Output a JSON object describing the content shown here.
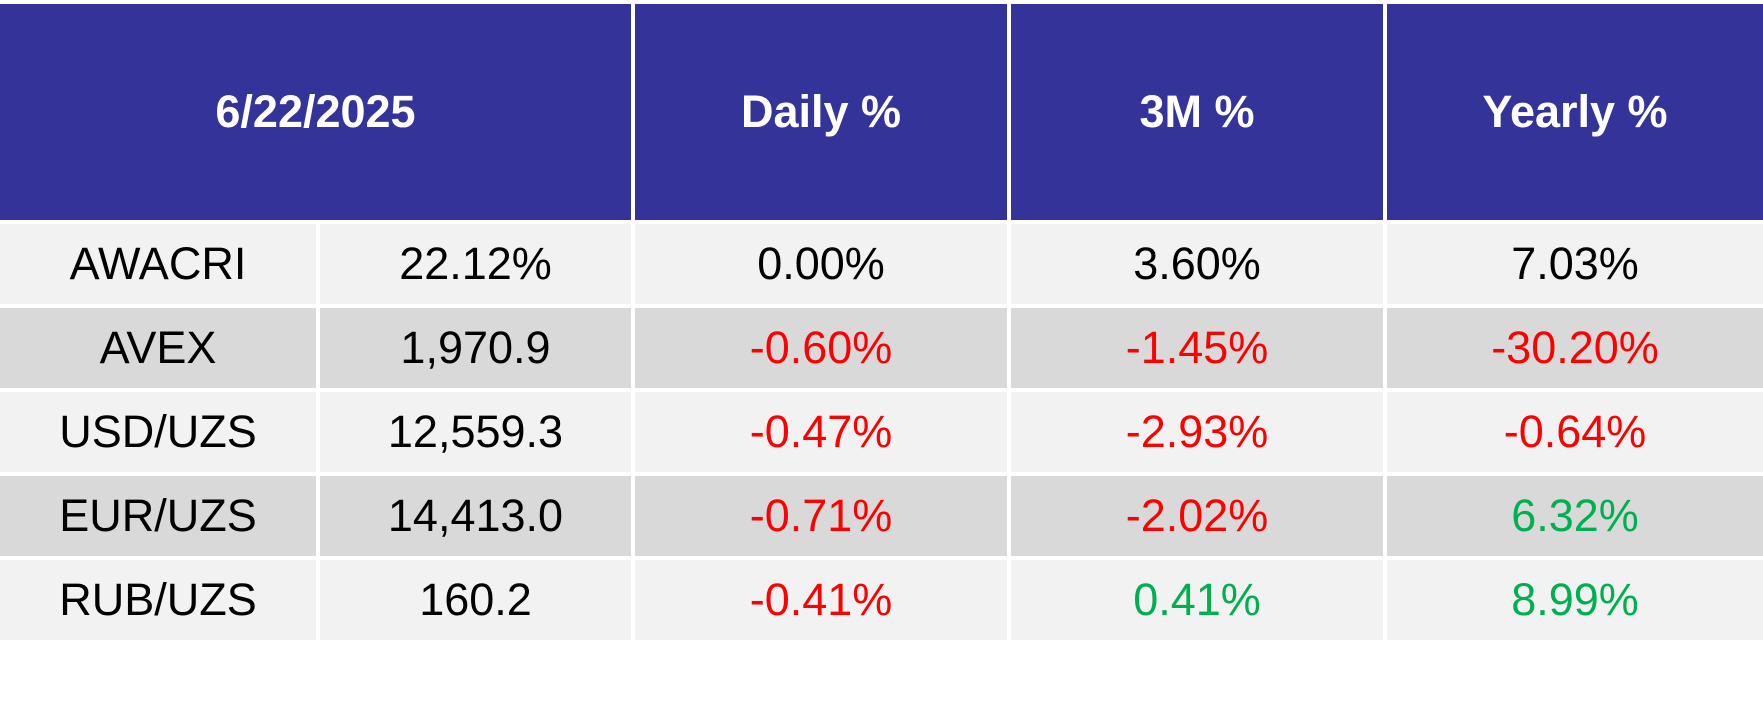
{
  "header": {
    "date": "6/22/2025",
    "daily": "Daily %",
    "three_month": "3M %",
    "yearly": "Yearly %"
  },
  "colors": {
    "header_bg": "#333399",
    "header_text": "#ffffff",
    "row_light": "#f2f2f2",
    "row_dark": "#d9d9d9",
    "negative": "#ff0000",
    "positive": "#00b050"
  },
  "rows": [
    {
      "name": "AWACRI",
      "value": "22.12%",
      "daily": "0.00%",
      "daily_sign": "neu",
      "three_month": "3.60%",
      "three_month_sign": "neu",
      "yearly": "7.03%",
      "yearly_sign": "neu"
    },
    {
      "name": "AVEX",
      "value": "1,970.9",
      "daily": "-0.60%",
      "daily_sign": "neg",
      "three_month": "-1.45%",
      "three_month_sign": "neg",
      "yearly": "-30.20%",
      "yearly_sign": "neg"
    },
    {
      "name": "USD/UZS",
      "value": "12,559.3",
      "daily": "-0.47%",
      "daily_sign": "neg",
      "three_month": "-2.93%",
      "three_month_sign": "neg",
      "yearly": "-0.64%",
      "yearly_sign": "neg"
    },
    {
      "name": "EUR/UZS",
      "value": "14,413.0",
      "daily": "-0.71%",
      "daily_sign": "neg",
      "three_month": "-2.02%",
      "three_month_sign": "neg",
      "yearly": "6.32%",
      "yearly_sign": "pos"
    },
    {
      "name": "RUB/UZS",
      "value": "160.2",
      "daily": "-0.41%",
      "daily_sign": "neg",
      "three_month": "0.41%",
      "three_month_sign": "pos",
      "yearly": "8.99%",
      "yearly_sign": "pos"
    }
  ]
}
